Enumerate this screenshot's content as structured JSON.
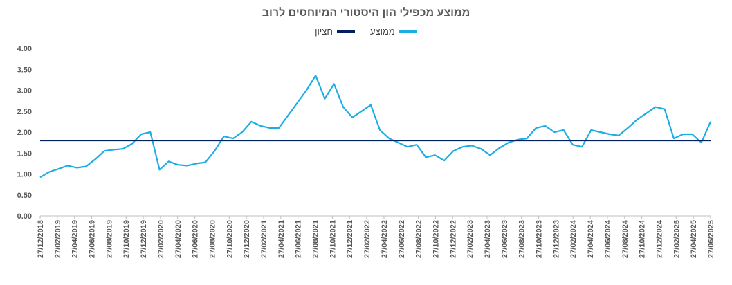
{
  "chart_data": {
    "type": "line",
    "title": "ממוצע מכפילי הון היסטורי המיוחסים לרוב",
    "xlabel": "",
    "ylabel": "",
    "ylim": [
      0,
      4
    ],
    "yticks": [
      "0.00",
      "0.50",
      "1.00",
      "1.50",
      "2.00",
      "2.50",
      "3.00",
      "3.50",
      "4.00"
    ],
    "xticks": [
      "27/12/2018",
      "27/02/2019",
      "27/04/2019",
      "27/06/2019",
      "27/08/2019",
      "27/10/2019",
      "27/12/2019",
      "27/02/2020",
      "27/04/2020",
      "27/06/2020",
      "27/08/2020",
      "27/10/2020",
      "27/12/2020",
      "27/02/2021",
      "27/04/2021",
      "27/06/2021",
      "27/08/2021",
      "27/10/2021",
      "27/12/2021",
      "27/02/2022",
      "27/04/2022",
      "27/06/2022",
      "27/08/2022",
      "27/10/2022",
      "27/12/2022",
      "27/02/2023",
      "27/04/2023",
      "27/06/2023",
      "27/08/2023",
      "27/10/2023",
      "27/12/2023",
      "27/02/2024",
      "27/04/2024",
      "27/06/2024",
      "27/08/2024",
      "27/10/2024",
      "27/12/2024",
      "27/02/2025",
      "27/04/2025",
      "27/06/2025"
    ],
    "legend_position": "top",
    "grid": false,
    "series": [
      {
        "name": "ממוצע",
        "color": "#1CADE4",
        "values": [
          0.92,
          1.05,
          1.12,
          1.2,
          1.15,
          1.18,
          1.35,
          1.55,
          1.58,
          1.6,
          1.72,
          1.95,
          2.0,
          1.1,
          1.3,
          1.22,
          1.2,
          1.25,
          1.28,
          1.55,
          1.9,
          1.85,
          2.0,
          2.25,
          2.15,
          2.1,
          2.1,
          2.4,
          2.7,
          3.0,
          3.35,
          2.8,
          3.15,
          2.6,
          2.35,
          2.5,
          2.65,
          2.05,
          1.85,
          1.75,
          1.65,
          1.7,
          1.4,
          1.45,
          1.32,
          1.55,
          1.65,
          1.68,
          1.6,
          1.45,
          1.62,
          1.75,
          1.82,
          1.85,
          2.1,
          2.15,
          2.0,
          2.05,
          1.7,
          1.65,
          2.05,
          2.0,
          1.95,
          1.92,
          2.1,
          2.3,
          2.45,
          2.6,
          2.55,
          1.85,
          1.95,
          1.95,
          1.75,
          2.25
        ]
      },
      {
        "name": "חציון",
        "color": "#002060",
        "values": [
          1.8,
          1.8
        ]
      }
    ]
  }
}
